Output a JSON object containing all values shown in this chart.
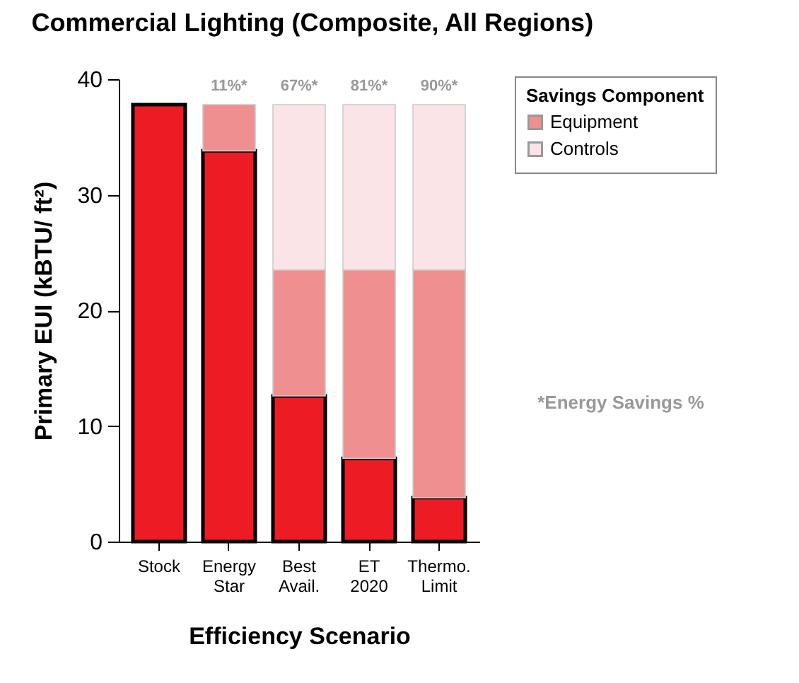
{
  "chart_data": {
    "type": "bar",
    "title": "Commercial Lighting (Composite, All Regions)",
    "xlabel": "Efficiency Scenario",
    "ylabel": "Primary EUI (kBTU/ ft²)",
    "legend_title": "Savings Component",
    "categories": [
      "Stock",
      "Energy Star",
      "Best Avail.",
      "ET 2020",
      "Thermo. Limit"
    ],
    "stacked": true,
    "series": [
      {
        "color": "#ed1c24",
        "values": [
          37.8,
          33.8,
          12.6,
          7.2,
          3.8
        ]
      },
      {
        "name": "Equipment",
        "color": "#f08f8f",
        "values": [
          null,
          4.0,
          10.9,
          16.3,
          19.7
        ]
      },
      {
        "name": "Controls",
        "color": "#fbe4e8",
        "values": [
          null,
          null,
          14.3,
          14.3,
          14.3
        ]
      }
    ],
    "ylim": [
      0,
      40
    ],
    "yticks": [
      0,
      10,
      20,
      30,
      40
    ],
    "grid": false,
    "legend": "top right",
    "annotations": [
      {
        "text": "11%*",
        "x": "Energy Star",
        "y": 37.8
      },
      {
        "text": "67%*",
        "x": "Best Avail.",
        "y": 37.8
      },
      {
        "text": "81%*",
        "x": "ET 2020",
        "y": 37.8
      },
      {
        "text": "90%*",
        "x": "Thermo. Limit",
        "y": 37.8
      },
      "*Energy Savings %"
    ]
  }
}
